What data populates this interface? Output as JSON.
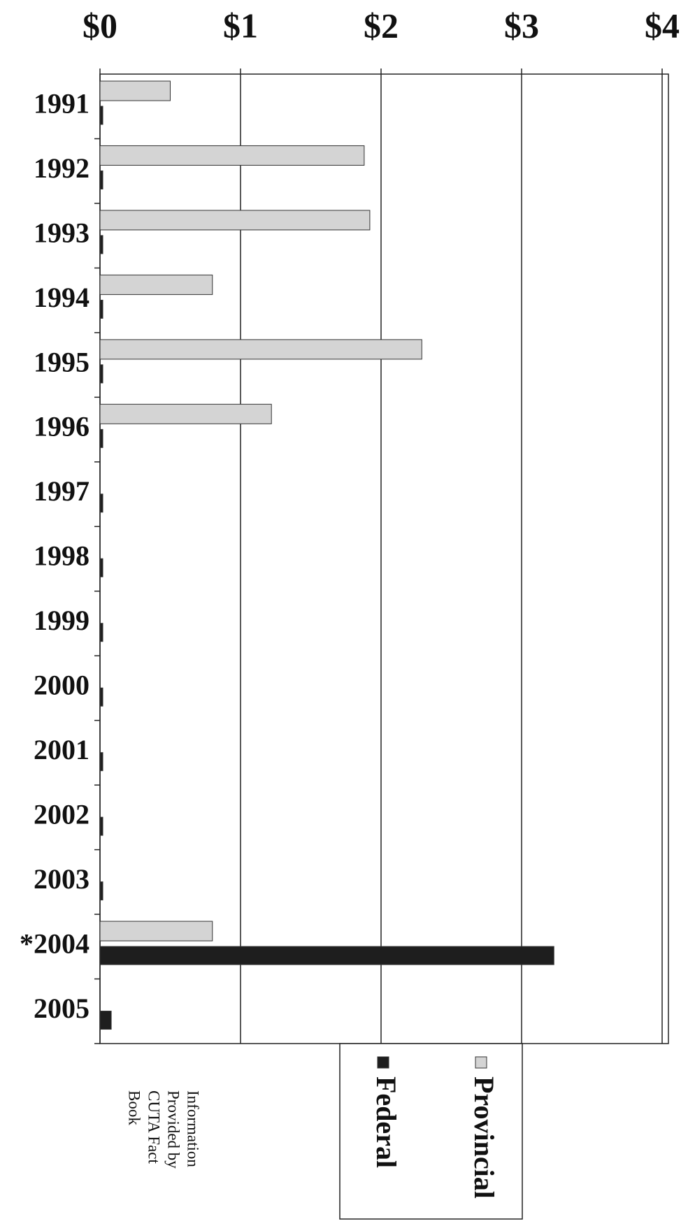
{
  "chart_data": {
    "type": "bar",
    "orientation": "horizontal",
    "categories": [
      "1991",
      "1992",
      "1993",
      "1994",
      "1995",
      "1996",
      "1997",
      "1998",
      "1999",
      "2000",
      "2001",
      "2002",
      "2003",
      "*2004",
      "2005"
    ],
    "series": [
      {
        "name": "Provincial",
        "color": "#d4d4d4",
        "values": [
          0.5,
          1.88,
          1.92,
          0.8,
          2.29,
          1.22,
          0,
          0,
          0,
          0,
          0,
          0,
          0,
          0.8,
          0
        ]
      },
      {
        "name": "Federal",
        "color": "#1e1e1e",
        "values": [
          0.02,
          0.02,
          0.02,
          0.02,
          0.02,
          0.02,
          0.02,
          0.02,
          0.02,
          0.02,
          0.02,
          0.02,
          0.02,
          3.23,
          0.08
        ]
      }
    ],
    "xlim": [
      0,
      4
    ],
    "xticks": [
      {
        "value": 0,
        "label": "$0"
      },
      {
        "value": 1,
        "label": "$1"
      },
      {
        "value": 2,
        "label": "$2"
      },
      {
        "value": 3,
        "label": "$3"
      },
      {
        "value": 4,
        "label": "$4"
      }
    ],
    "grid": true,
    "legend": "bottom",
    "annotation": [
      "Information",
      "Provided by",
      "CUTA Fact",
      "Book"
    ]
  }
}
